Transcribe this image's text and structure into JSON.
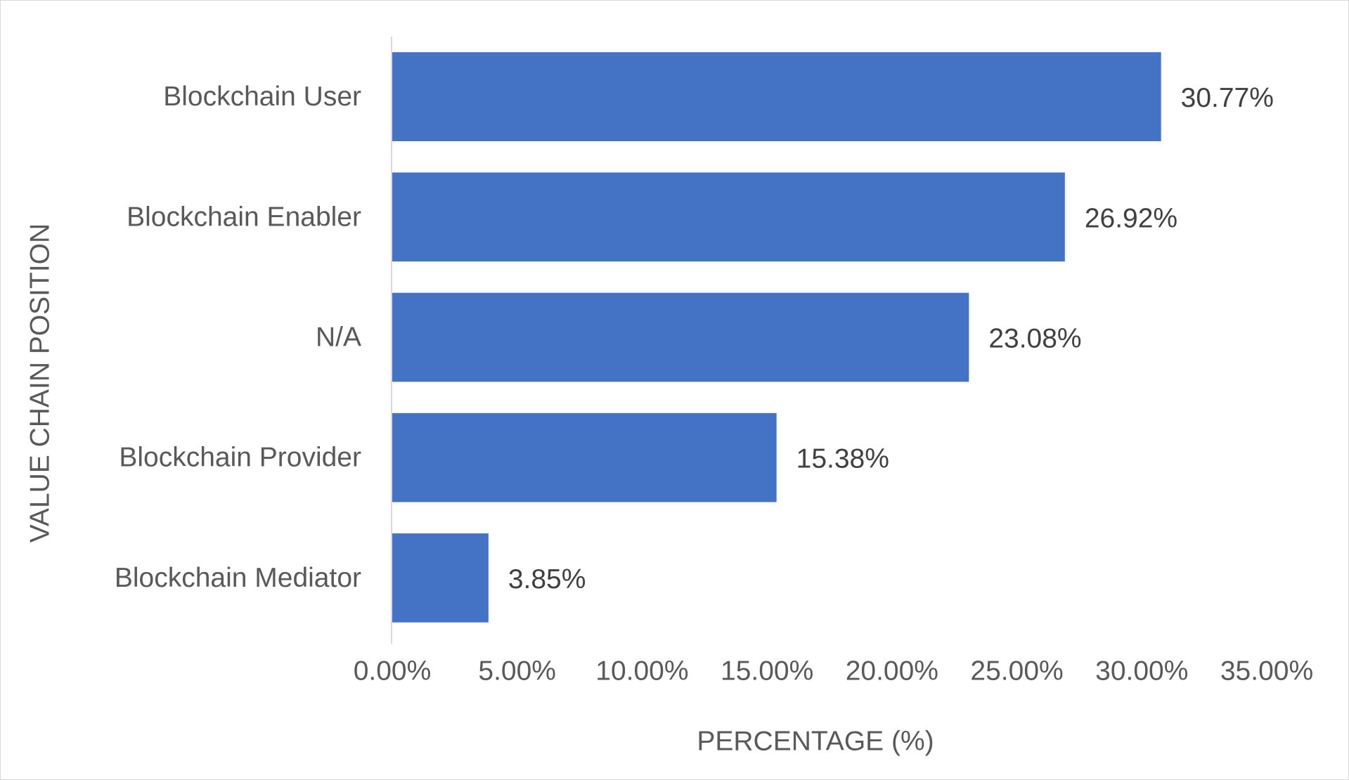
{
  "chart_data": {
    "type": "bar",
    "orientation": "horizontal",
    "categories": [
      "Blockchain User",
      "Blockchain Enabler",
      "N/A",
      "Blockchain Provider",
      "Blockchain Mediator"
    ],
    "values": [
      30.77,
      26.92,
      23.08,
      15.38,
      3.85
    ],
    "data_labels": [
      "30.77%",
      "26.92%",
      "23.08%",
      "15.38%",
      "3.85%"
    ],
    "xlim": [
      0,
      35
    ],
    "x_ticks": [
      0,
      5,
      10,
      15,
      20,
      25,
      30,
      35
    ],
    "x_tick_labels": [
      "0.00%",
      "5.00%",
      "10.00%",
      "15.00%",
      "20.00%",
      "25.00%",
      "30.00%",
      "35.00%"
    ],
    "xlabel": "PERCENTAGE (%)",
    "ylabel": "VALUE CHAIN POSITION",
    "title": "",
    "grid": false,
    "legend": "none",
    "bar_color": "#4472C4"
  }
}
